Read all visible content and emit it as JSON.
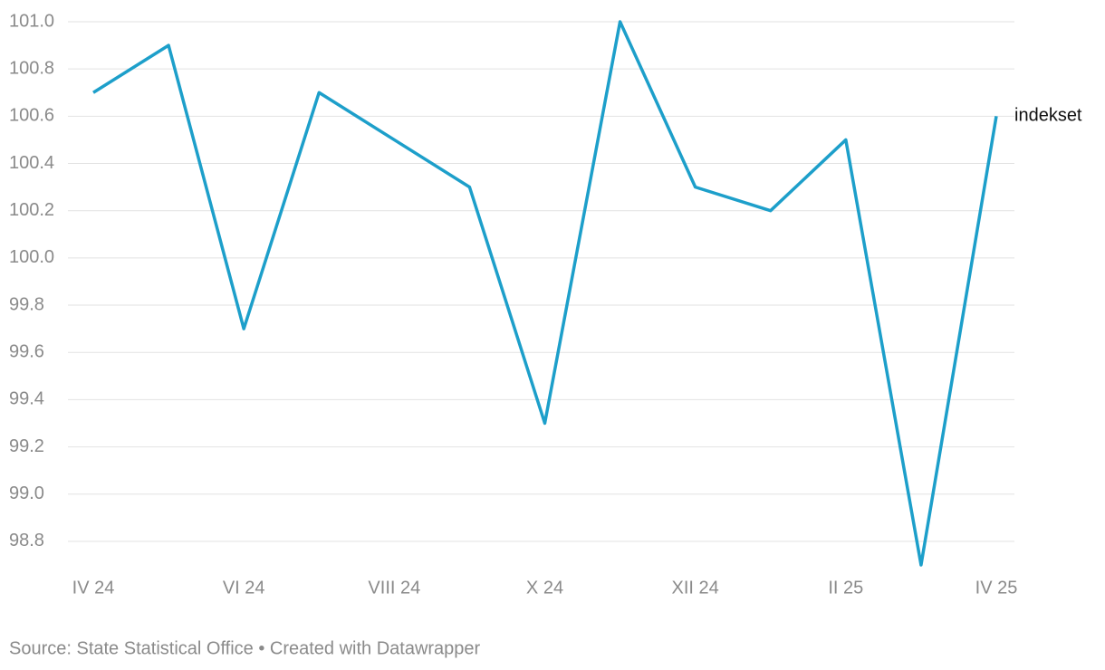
{
  "chart_data": {
    "type": "line",
    "categories": [
      "IV 24",
      null,
      "VI 24",
      null,
      "VIII 24",
      null,
      "X 24",
      null,
      "XII 24",
      null,
      "II 25",
      null,
      "IV 25"
    ],
    "series": [
      {
        "name": "indekset",
        "color": "#1d9fca",
        "values": [
          100.7,
          100.9,
          99.7,
          100.7,
          100.5,
          100.3,
          99.3,
          101.0,
          100.3,
          100.2,
          100.5,
          98.7,
          100.6
        ]
      }
    ],
    "ylim": [
      98.7,
      101.0
    ],
    "yticks": [
      98.8,
      {
        "value": 99.0,
        "label": "99.0"
      },
      99.2,
      99.4,
      99.6,
      99.8,
      {
        "value": 100.0,
        "label": "100.0"
      },
      100.2,
      100.4,
      100.6,
      100.8,
      {
        "value": 101.0,
        "label": "101.0"
      }
    ],
    "grid": true,
    "source": "Source: State Statistical Office • Created with Datawrapper"
  }
}
